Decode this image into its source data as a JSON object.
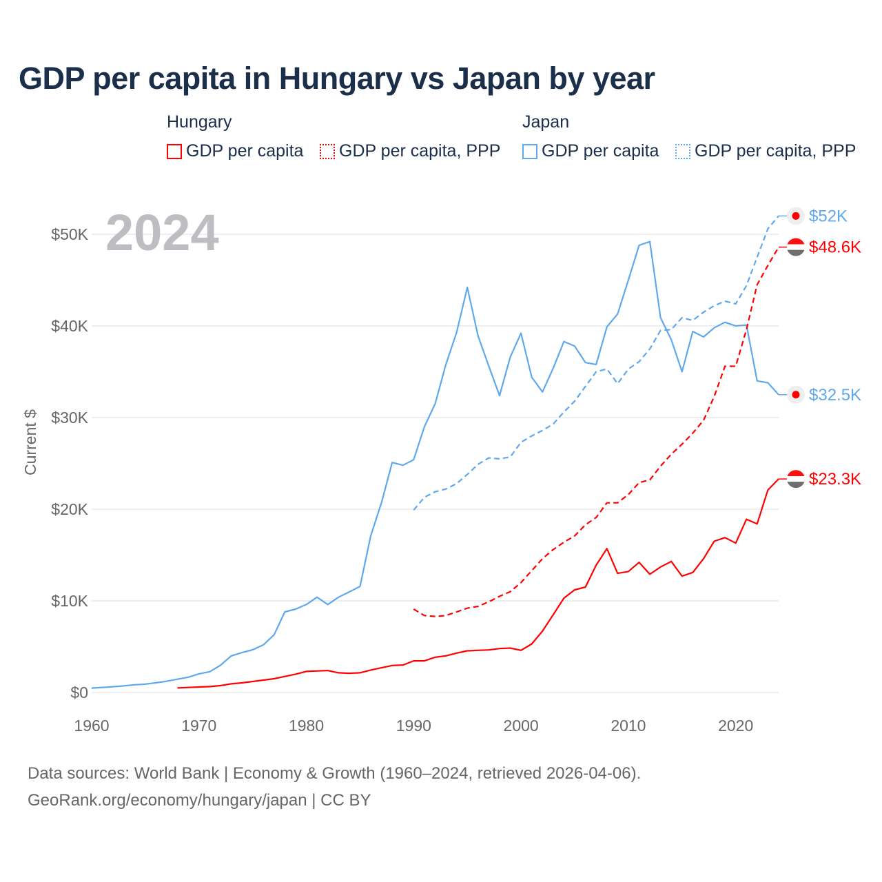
{
  "title": "GDP per capita in Hungary vs Japan by year",
  "legend": {
    "groups": [
      {
        "name": "Hungary",
        "items": [
          "GDP per capita",
          "GDP per capita, PPP"
        ],
        "color": "#ff0000"
      },
      {
        "name": "Japan",
        "items": [
          "GDP per capita",
          "GDP per capita, PPP"
        ],
        "color": "#5fa8ec"
      }
    ]
  },
  "year_watermark": "2024",
  "footer": {
    "line1": "Data sources: World Bank | Economy & Growth (1960–2024, retrieved 2026-04-06).",
    "line2": "GeoRank.org/economy/hungary/japan | CC BY"
  },
  "chart_data": {
    "type": "line",
    "title": "GDP per capita in Hungary vs Japan by year",
    "xlabel": "",
    "ylabel": "Current $",
    "xlim": [
      1960,
      2024
    ],
    "ylim": [
      0,
      52000
    ],
    "x_ticks": [
      1960,
      1970,
      1980,
      1990,
      2000,
      2010,
      2020
    ],
    "y_ticks": [
      {
        "v": 0,
        "label": "$0"
      },
      {
        "v": 10000,
        "label": "$10K"
      },
      {
        "v": 20000,
        "label": "$20K"
      },
      {
        "v": 30000,
        "label": "$30K"
      },
      {
        "v": 40000,
        "label": "$40K"
      },
      {
        "v": 50000,
        "label": "$50K"
      }
    ],
    "grid": true,
    "series": [
      {
        "name": "Japan GDP per capita",
        "color": "#5fa8ec",
        "dashed": false,
        "start": 1960,
        "end_label": "$32.5K",
        "flag": "japan",
        "values": [
          480,
          560,
          630,
          720,
          840,
          920,
          1060,
          1230,
          1450,
          1670,
          2040,
          2270,
          2970,
          3990,
          4350,
          4660,
          5200,
          6300,
          8800,
          9100,
          9600,
          10400,
          9600,
          10400,
          10980,
          11580,
          17100,
          20700,
          25100,
          24800,
          25400,
          29000,
          31500,
          35800,
          39300,
          44200,
          38900,
          35600,
          32400,
          36600,
          39200,
          34400,
          32800,
          35400,
          38300,
          37800,
          36000,
          35800,
          39900,
          41300,
          45000,
          48800,
          49200,
          40900,
          38500,
          35000,
          39400,
          38800,
          39800,
          40400,
          40000,
          40100,
          34000,
          33800,
          32500
        ]
      },
      {
        "name": "Japan GDP per capita, PPP",
        "color": "#5fa8ec",
        "dashed": true,
        "start": 1990,
        "end_label": "$52K",
        "flag": "japan",
        "values": [
          19900,
          21300,
          21900,
          22200,
          22800,
          23800,
          24900,
          25600,
          25500,
          25700,
          27300,
          28000,
          28600,
          29300,
          30600,
          31800,
          33400,
          35000,
          35300,
          33700,
          35300,
          36100,
          37500,
          39500,
          39600,
          40900,
          40600,
          41500,
          42200,
          42700,
          42400,
          44400,
          47500,
          50600,
          52000
        ]
      },
      {
        "name": "Hungary GDP per capita",
        "color": "#ff0000",
        "dashed": false,
        "start": 1968,
        "end_label": "$23.3K",
        "flag": "hungary",
        "values": [
          500,
          550,
          600,
          650,
          750,
          950,
          1050,
          1200,
          1350,
          1500,
          1750,
          2000,
          2300,
          2350,
          2400,
          2150,
          2100,
          2150,
          2450,
          2700,
          2950,
          3000,
          3450,
          3450,
          3850,
          4000,
          4300,
          4550,
          4600,
          4650,
          4800,
          4850,
          4600,
          5300,
          6700,
          8500,
          10300,
          11200,
          11500,
          13900,
          15700,
          13000,
          13200,
          14200,
          12900,
          13700,
          14300,
          12700,
          13100,
          14600,
          16500,
          16900,
          16300,
          18900,
          18400,
          22100,
          23300
        ]
      },
      {
        "name": "Hungary GDP per capita, PPP",
        "color": "#ff0000",
        "dashed": true,
        "start": 1990,
        "end_label": "$48.6K",
        "flag": "hungary",
        "values": [
          9100,
          8400,
          8300,
          8400,
          8800,
          9200,
          9400,
          9900,
          10500,
          11000,
          12000,
          13300,
          14600,
          15600,
          16400,
          17100,
          18300,
          19100,
          20700,
          20700,
          21600,
          22900,
          23200,
          24700,
          26000,
          27100,
          28300,
          29700,
          32300,
          35600,
          35600,
          39600,
          44500,
          46600,
          48600
        ]
      }
    ]
  }
}
